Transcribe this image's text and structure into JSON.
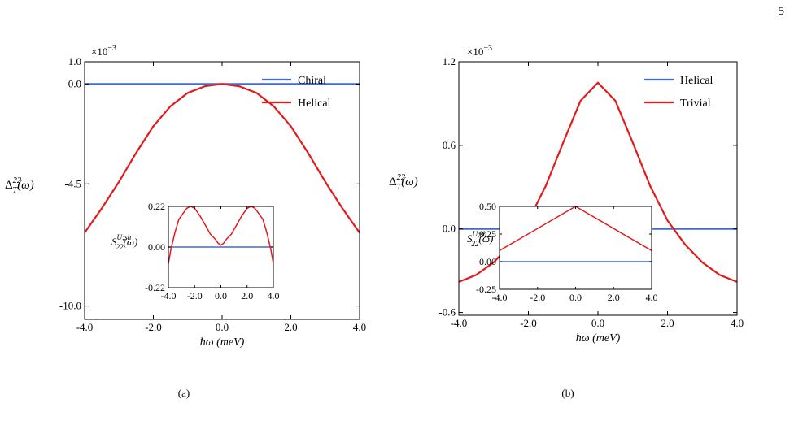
{
  "page_number": "5",
  "panels": [
    {
      "caption": "(a)",
      "multiplier": "×10",
      "multiplier_exp": "−3",
      "ylabel_main": "Δ",
      "ylabel_sub": "T",
      "ylabel_sup": "22",
      "ylabel_arg": "(ω)",
      "xlabel": "ħω (meV)",
      "inset_ylabel_main": "S",
      "inset_ylabel_sub": "22",
      "inset_ylabel_sup": "U;sh",
      "inset_ylabel_arg": "(ω)"
    },
    {
      "caption": "(b)",
      "multiplier": "×10",
      "multiplier_exp": "−3",
      "ylabel_main": "Δ",
      "ylabel_sub": "T",
      "ylabel_sup": "22",
      "ylabel_arg": "(ω)",
      "xlabel": "ħω (meV)",
      "inset_ylabel_main": "S",
      "inset_ylabel_sub": "22",
      "inset_ylabel_sup": "U;sh",
      "inset_ylabel_arg": "(ω)"
    }
  ],
  "chart_data": [
    {
      "type": "line",
      "xlim": [
        -4.0,
        4.0
      ],
      "ylim": [
        -10.6,
        1.0
      ],
      "xticks": [
        -4.0,
        -2.0,
        0.0,
        2.0,
        4.0
      ],
      "xtick_labels": [
        "-4.0",
        "-2.0",
        "0.0",
        "2.0",
        "4.0"
      ],
      "yticks": [
        1.0,
        0.0,
        -4.5,
        -10.0
      ],
      "ytick_labels": [
        "1.0",
        "0.0",
        "-4.5",
        "-10.0"
      ],
      "legend_position": "top-right",
      "series": [
        {
          "name": "Chiral",
          "color": "#4169e1",
          "x": [
            -4.0,
            4.0
          ],
          "y": [
            0.0,
            0.0
          ]
        },
        {
          "name": "Helical",
          "color": "#e31a1c",
          "x": [
            -4.0,
            -3.5,
            -3.0,
            -2.5,
            -2.0,
            -1.5,
            -1.0,
            -0.5,
            0.0,
            0.5,
            1.0,
            1.5,
            2.0,
            2.5,
            3.0,
            3.5,
            4.0
          ],
          "y": [
            -6.7,
            -5.6,
            -4.4,
            -3.1,
            -1.9,
            -1.0,
            -0.4,
            -0.1,
            0.0,
            -0.1,
            -0.4,
            -1.0,
            -1.9,
            -3.1,
            -4.4,
            -5.6,
            -6.7
          ]
        }
      ],
      "inset": {
        "xlim": [
          -4.0,
          4.0
        ],
        "ylim": [
          -0.22,
          0.22
        ],
        "xticks": [
          -4.0,
          -2.0,
          0.0,
          2.0,
          4.0
        ],
        "xtick_labels": [
          "-4.0",
          "-2.0",
          "0.0",
          "2.0",
          "4.0"
        ],
        "yticks": [
          0.22,
          0.0,
          -0.22
        ],
        "ytick_labels": [
          "0.22",
          "0.00",
          "-0.22"
        ],
        "series": [
          {
            "color": "#4169e1",
            "x": [
              -4.0,
              4.0
            ],
            "y": [
              0.0,
              0.0
            ]
          },
          {
            "color": "#e31a1c",
            "x": [
              -4.0,
              -3.8,
              -3.5,
              -3.2,
              -2.9,
              -2.6,
              -2.3,
              -2.0,
              -1.6,
              -1.2,
              -0.8,
              -0.4,
              -0.2,
              0.0,
              0.2,
              0.4,
              0.8,
              1.2,
              1.6,
              2.0,
              2.3,
              2.6,
              2.9,
              3.2,
              3.5,
              3.8,
              4.0
            ],
            "y": [
              -0.09,
              -0.01,
              0.08,
              0.15,
              0.18,
              0.21,
              0.22,
              0.21,
              0.17,
              0.12,
              0.07,
              0.04,
              0.02,
              0.01,
              0.02,
              0.04,
              0.07,
              0.12,
              0.17,
              0.21,
              0.22,
              0.21,
              0.18,
              0.15,
              0.08,
              -0.01,
              -0.09
            ]
          }
        ]
      }
    },
    {
      "type": "line",
      "xlim": [
        -4.0,
        4.0
      ],
      "ylim": [
        -0.62,
        1.2
      ],
      "xticks": [
        -4.0,
        -2.0,
        0.0,
        2.0,
        4.0
      ],
      "xtick_labels": [
        "-4.0",
        "-2.0",
        "0.0",
        "2.0",
        "4.0"
      ],
      "yticks": [
        1.2,
        0.6,
        0.0,
        -0.6
      ],
      "ytick_labels": [
        "1.2",
        "0.6",
        "0.0",
        "-0.6"
      ],
      "legend_position": "top-right",
      "series": [
        {
          "name": "Helical",
          "color": "#4169e1",
          "x": [
            -4.0,
            4.0
          ],
          "y": [
            0.0,
            0.0
          ]
        },
        {
          "name": "Trivial",
          "color": "#e31a1c",
          "x": [
            -4.0,
            -3.5,
            -3.0,
            -2.5,
            -2.0,
            -1.5,
            -1.0,
            -0.5,
            0.0,
            0.5,
            1.0,
            1.5,
            2.0,
            2.5,
            3.0,
            3.5,
            4.0
          ],
          "y": [
            -0.38,
            -0.33,
            -0.24,
            -0.11,
            0.06,
            0.31,
            0.62,
            0.92,
            1.05,
            0.92,
            0.62,
            0.31,
            0.06,
            -0.11,
            -0.24,
            -0.33,
            -0.38
          ]
        }
      ],
      "inset": {
        "xlim": [
          -4.0,
          4.0
        ],
        "ylim": [
          -0.25,
          0.5
        ],
        "xticks": [
          -4.0,
          -2.0,
          0.0,
          2.0,
          4.0
        ],
        "xtick_labels": [
          "-4.0",
          "-2.0",
          "0.0",
          "2.0",
          "4.0"
        ],
        "yticks": [
          0.5,
          0.25,
          0.0,
          -0.25
        ],
        "ytick_labels": [
          "0.50",
          "0.25",
          "0.00",
          "-0.25"
        ],
        "series": [
          {
            "color": "#4169e1",
            "x": [
              -4.0,
              4.0
            ],
            "y": [
              0.0,
              0.0
            ]
          },
          {
            "color": "#e31a1c",
            "x": [
              -4.0,
              0.0,
              4.0
            ],
            "y": [
              0.1,
              0.5,
              0.1
            ]
          }
        ]
      }
    }
  ]
}
